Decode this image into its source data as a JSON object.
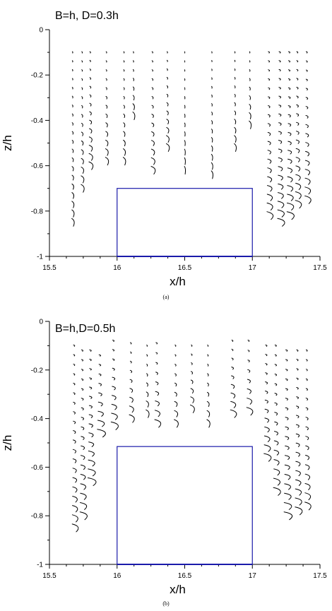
{
  "colors": {
    "axis": "#000000",
    "box": "#1a1aaa",
    "vector": "#000000"
  },
  "chart_data": [
    {
      "type": "line",
      "panel": "a",
      "caption": "(a)",
      "title": "B=h, D=0.3h",
      "xlabel": "x/h",
      "ylabel": "z/h",
      "xlim": [
        15.5,
        17.5
      ],
      "ylim": [
        -1,
        0
      ],
      "xticks": [
        15.5,
        16,
        16.5,
        17,
        17.5
      ],
      "xtick_labels": [
        "15.5",
        "16",
        "16.5",
        "17",
        "17.5"
      ],
      "yticks": [
        0,
        -0.2,
        -0.4,
        -0.6,
        -0.8,
        -1
      ],
      "ytick_labels": [
        "0",
        "-0.2",
        "-0.4",
        "-0.6",
        "-0.8",
        "-1"
      ],
      "obstacle": {
        "x": [
          16,
          17
        ],
        "z_top": -0.7,
        "z_bottom": -1
      },
      "columns": [
        {
          "x": 15.67,
          "z_top": -0.1,
          "z_bottom": -0.85,
          "curl": 0.012
        },
        {
          "x": 15.74,
          "z_top": -0.1,
          "z_bottom": -0.7,
          "curl": 0.015
        },
        {
          "x": 15.8,
          "z_top": -0.1,
          "z_bottom": -0.6,
          "curl": 0.02
        },
        {
          "x": 15.92,
          "z_top": -0.1,
          "z_bottom": -0.58,
          "curl": 0.015
        },
        {
          "x": 16.05,
          "z_top": -0.1,
          "z_bottom": -0.58,
          "curl": 0.012
        },
        {
          "x": 16.12,
          "z_top": -0.1,
          "z_bottom": -0.38,
          "curl": 0.01
        },
        {
          "x": 16.26,
          "z_top": -0.1,
          "z_bottom": -0.62,
          "curl": 0.02
        },
        {
          "x": 16.37,
          "z_top": -0.1,
          "z_bottom": -0.52,
          "curl": 0.015
        },
        {
          "x": 16.5,
          "z_top": -0.1,
          "z_bottom": -0.62,
          "curl": 0.005
        },
        {
          "x": 16.7,
          "z_top": -0.1,
          "z_bottom": -0.64,
          "curl": 0.008
        },
        {
          "x": 16.87,
          "z_top": -0.1,
          "z_bottom": -0.52,
          "curl": 0.01
        },
        {
          "x": 16.98,
          "z_top": -0.1,
          "z_bottom": -0.42,
          "curl": 0.01
        },
        {
          "x": 17.12,
          "z_top": -0.1,
          "z_bottom": -0.82,
          "curl": 0.03
        },
        {
          "x": 17.2,
          "z_top": -0.1,
          "z_bottom": -0.85,
          "curl": 0.035
        },
        {
          "x": 17.27,
          "z_top": -0.1,
          "z_bottom": -0.82,
          "curl": 0.035
        },
        {
          "x": 17.33,
          "z_top": -0.1,
          "z_bottom": -0.77,
          "curl": 0.03
        },
        {
          "x": 17.4,
          "z_top": -0.1,
          "z_bottom": -0.75,
          "curl": 0.03
        }
      ]
    },
    {
      "type": "line",
      "panel": "b",
      "caption": "(b)",
      "title": "B=h,D=0.5h",
      "xlabel": "x/h",
      "ylabel": "z/h",
      "xlim": [
        15.5,
        17.5
      ],
      "ylim": [
        -1,
        0
      ],
      "xticks": [
        15.5,
        16,
        16.5,
        17,
        17.5
      ],
      "xtick_labels": [
        "15.5",
        "16",
        "16.5",
        "17",
        "17.5"
      ],
      "yticks": [
        0,
        -0.2,
        -0.4,
        -0.6,
        -0.8,
        -1
      ],
      "ytick_labels": [
        "0",
        "-0.2",
        "-0.4",
        "-0.6",
        "-0.8",
        "-1"
      ],
      "obstacle": {
        "x": [
          16,
          17
        ],
        "z_top": -0.515,
        "z_bottom": -1
      },
      "columns": [
        {
          "x": 15.68,
          "z_top": -0.1,
          "z_bottom": -0.85,
          "curl": 0.03
        },
        {
          "x": 15.74,
          "z_top": -0.12,
          "z_bottom": -0.8,
          "curl": 0.035
        },
        {
          "x": 15.8,
          "z_top": -0.12,
          "z_bottom": -0.66,
          "curl": 0.04
        },
        {
          "x": 15.87,
          "z_top": -0.14,
          "z_bottom": -0.46,
          "curl": 0.04
        },
        {
          "x": 15.97,
          "z_top": -0.08,
          "z_bottom": -0.43,
          "curl": 0.035
        },
        {
          "x": 16.1,
          "z_top": -0.09,
          "z_bottom": -0.4,
          "curl": 0.025
        },
        {
          "x": 16.22,
          "z_top": -0.1,
          "z_bottom": -0.38,
          "curl": 0.015
        },
        {
          "x": 16.29,
          "z_top": -0.09,
          "z_bottom": -0.42,
          "curl": 0.03
        },
        {
          "x": 16.43,
          "z_top": -0.1,
          "z_bottom": -0.42,
          "curl": 0.02
        },
        {
          "x": 16.55,
          "z_top": -0.1,
          "z_bottom": -0.36,
          "curl": 0.02
        },
        {
          "x": 16.67,
          "z_top": -0.1,
          "z_bottom": -0.42,
          "curl": 0.015
        },
        {
          "x": 16.85,
          "z_top": -0.08,
          "z_bottom": -0.38,
          "curl": 0.03
        },
        {
          "x": 16.97,
          "z_top": -0.08,
          "z_bottom": -0.37,
          "curl": 0.03
        },
        {
          "x": 17.1,
          "z_top": -0.1,
          "z_bottom": -0.56,
          "curl": 0.035
        },
        {
          "x": 17.17,
          "z_top": -0.1,
          "z_bottom": -0.7,
          "curl": 0.035
        },
        {
          "x": 17.25,
          "z_top": -0.12,
          "z_bottom": -0.8,
          "curl": 0.04
        },
        {
          "x": 17.33,
          "z_top": -0.12,
          "z_bottom": -0.78,
          "curl": 0.035
        },
        {
          "x": 17.4,
          "z_top": -0.12,
          "z_bottom": -0.76,
          "curl": 0.03
        }
      ]
    }
  ]
}
